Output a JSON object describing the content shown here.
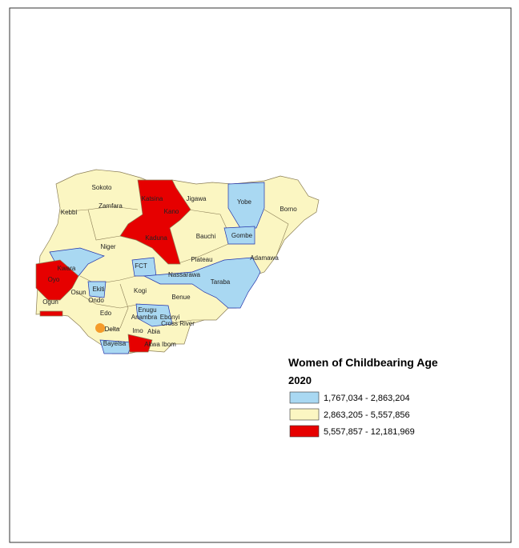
{
  "legend": {
    "title": "Women of Childbearing Age",
    "subtitle": "2020",
    "items": [
      {
        "label": "1,767,034 - 2,863,204",
        "color": "#a9d8f2"
      },
      {
        "label": "2,863,205 - 5,557,856",
        "color": "#fbf6c2"
      },
      {
        "label": "5,557,857 - 12,181,969",
        "color": "#e60000"
      }
    ]
  },
  "states": [
    "Sokoto",
    "Katsina",
    "Jigawa",
    "Yobe",
    "Borno",
    "Kebbi",
    "Zamfara",
    "Kano",
    "Bauchi",
    "Gombe",
    "Niger",
    "Kaduna",
    "Plateau",
    "Adamawa",
    "FCT",
    "Kwara",
    "Nassarawa",
    "Taraba",
    "Oyo",
    "Ekiti",
    "Osun",
    "Ogun",
    "Ondo",
    "Kogi",
    "Benue",
    "Edo",
    "Enugu",
    "Ebonyi",
    "Delta",
    "Anambra",
    "Imo",
    "Abia",
    "Cross River",
    "Bayelsa",
    "Akwa Ibom"
  ]
}
